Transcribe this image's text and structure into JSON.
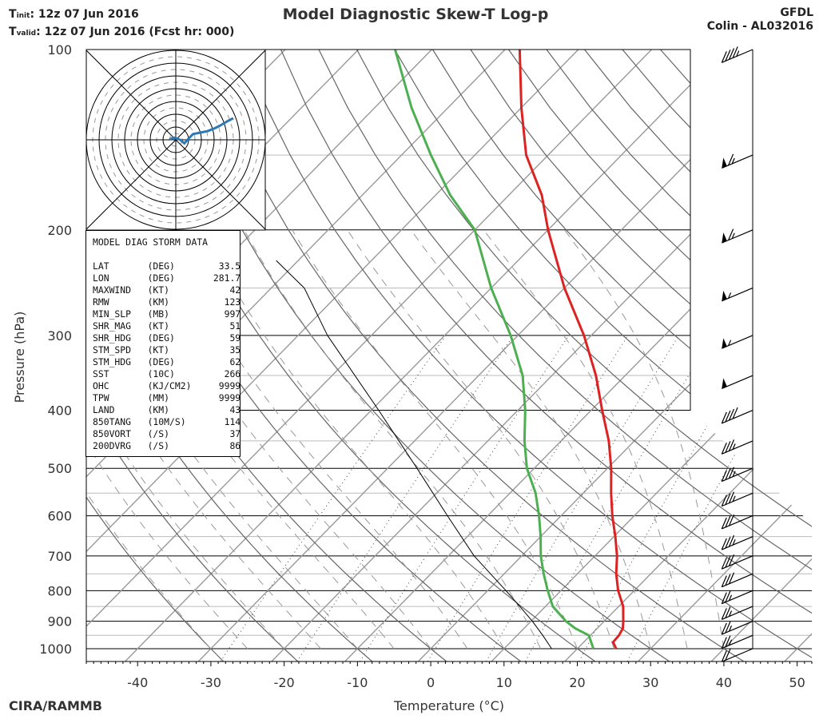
{
  "header": {
    "init_label": "T",
    "init_sub": "init",
    "init_value": ":  12z 07 Jun 2016",
    "valid_label": "T",
    "valid_sub": "valid",
    "valid_value": ": 12z 07 Jun 2016 (Fcst hr: 000)",
    "title": "Model Diagnostic Skew-T Log-p",
    "model": "GFDL",
    "storm": "Colin - AL032016"
  },
  "footer": {
    "credit": "CIRA/RAMMB"
  },
  "storm_box": {
    "title": "MODEL DIAG STORM DATA",
    "rows": [
      {
        "name": "LAT",
        "unit": "(DEG)",
        "value": "33.5"
      },
      {
        "name": "LON",
        "unit": "(DEG)",
        "value": "281.7"
      },
      {
        "name": "MAXWIND",
        "unit": "(KT)",
        "value": "42"
      },
      {
        "name": "RMW",
        "unit": "(KM)",
        "value": "123"
      },
      {
        "name": "MIN_SLP",
        "unit": "(MB)",
        "value": "997"
      },
      {
        "name": "SHR_MAG",
        "unit": "(KT)",
        "value": "51"
      },
      {
        "name": "SHR_HDG",
        "unit": "(DEG)",
        "value": "59"
      },
      {
        "name": "STM_SPD",
        "unit": "(KT)",
        "value": "35"
      },
      {
        "name": "STM_HDG",
        "unit": "(DEG)",
        "value": "62"
      },
      {
        "name": "SST",
        "unit": "(10C)",
        "value": "266"
      },
      {
        "name": "OHC",
        "unit": "(KJ/CM2)",
        "value": "9999"
      },
      {
        "name": "TPW",
        "unit": "(MM)",
        "value": "9999"
      },
      {
        "name": "LAND",
        "unit": "(KM)",
        "value": "43"
      },
      {
        "name": "850TANG",
        "unit": "(10M/S)",
        "value": "114"
      },
      {
        "name": "850VORT",
        "unit": "(/S)",
        "value": "37"
      },
      {
        "name": "200DVRG",
        "unit": "(/S)",
        "value": "86"
      }
    ]
  },
  "colors": {
    "temperature": "#dd2222",
    "dewpoint": "#4caf50",
    "hodograph": "#2a7ab8",
    "isobar": "#000000",
    "isotherm": "#999999",
    "dry_adiabat": "#666666",
    "moist_adiabat": "#999999",
    "mixing_ratio": "#444444",
    "parcel": "#000000"
  },
  "chart_data": {
    "type": "skew-t",
    "title": "Model Diagnostic Skew-T Log-p",
    "xlabel": "Temperature (°C)",
    "ylabel": "Pressure (hPa)",
    "xlim": [
      -47,
      52
    ],
    "ylim": [
      1050,
      100
    ],
    "x_ticks": [
      -40,
      -30,
      -20,
      -10,
      0,
      10,
      20,
      30,
      40,
      50
    ],
    "y_ticks": [
      1000,
      900,
      800,
      700,
      600,
      500,
      400,
      300,
      200,
      100
    ],
    "y_minor_levels": [
      950,
      850,
      750,
      650,
      550,
      450,
      350,
      250,
      150
    ],
    "series": [
      {
        "name": "Temperature",
        "pressure": [
          1000,
          975,
          950,
          925,
          900,
          850,
          800,
          750,
          700,
          650,
          600,
          550,
          500,
          450,
          400,
          350,
          300,
          250,
          200,
          175,
          150,
          125,
          100
        ],
        "values": [
          25.3,
          24.0,
          23.9,
          23.5,
          22.6,
          20.6,
          17.8,
          15.3,
          13.0,
          10.2,
          7.0,
          3.8,
          0.5,
          -3.5,
          -8.5,
          -14.0,
          -21.0,
          -30.0,
          -40.0,
          -45.5,
          -53.0,
          -60.0,
          -68.0
        ]
      },
      {
        "name": "Dewpoint",
        "pressure": [
          1000,
          975,
          950,
          925,
          900,
          850,
          800,
          750,
          700,
          650,
          600,
          550,
          500,
          450,
          400,
          350,
          300,
          250,
          200,
          175,
          150,
          125,
          100
        ],
        "values": [
          22.2,
          21.0,
          19.8,
          17.0,
          14.8,
          11.0,
          8.2,
          5.4,
          2.6,
          0.0,
          -3.0,
          -6.5,
          -11.0,
          -15.0,
          -19.0,
          -24.0,
          -31.0,
          -40.0,
          -50.0,
          -58.0,
          -66.0,
          -75.0,
          -85.0
        ]
      },
      {
        "name": "Parcel",
        "pressure": [
          1000,
          950,
          900,
          850,
          800,
          700,
          600,
          500,
          400,
          300,
          250,
          225
        ],
        "values": [
          16.5,
          13.5,
          10.2,
          6.5,
          2.5,
          -6.5,
          -15.5,
          -26.0,
          -39.0,
          -56.0,
          -65.5,
          -73.0
        ]
      }
    ],
    "wind_barbs": [
      {
        "pressure": 100,
        "speed_kt": 45
      },
      {
        "pressure": 150,
        "speed_kt": 65
      },
      {
        "pressure": 200,
        "speed_kt": 65
      },
      {
        "pressure": 250,
        "speed_kt": 55
      },
      {
        "pressure": 300,
        "speed_kt": 55
      },
      {
        "pressure": 350,
        "speed_kt": 50
      },
      {
        "pressure": 400,
        "speed_kt": 40
      },
      {
        "pressure": 450,
        "speed_kt": 35
      },
      {
        "pressure": 500,
        "speed_kt": 35
      },
      {
        "pressure": 550,
        "speed_kt": 35
      },
      {
        "pressure": 600,
        "speed_kt": 30
      },
      {
        "pressure": 650,
        "speed_kt": 35
      },
      {
        "pressure": 700,
        "speed_kt": 30
      },
      {
        "pressure": 750,
        "speed_kt": 30
      },
      {
        "pressure": 800,
        "speed_kt": 25
      },
      {
        "pressure": 850,
        "speed_kt": 25
      },
      {
        "pressure": 900,
        "speed_kt": 25
      },
      {
        "pressure": 950,
        "speed_kt": 25
      },
      {
        "pressure": 1000,
        "speed_kt": 20
      }
    ],
    "hodograph": {
      "ring_step_kt": 10,
      "rings": 7,
      "u": [
        -4,
        -1,
        3,
        6,
        9,
        12,
        17,
        22,
        27,
        31,
        36,
        40
      ],
      "v": [
        0.5,
        1.5,
        0,
        -2.5,
        1,
        4,
        5,
        6,
        8,
        10,
        13,
        15
      ]
    }
  }
}
